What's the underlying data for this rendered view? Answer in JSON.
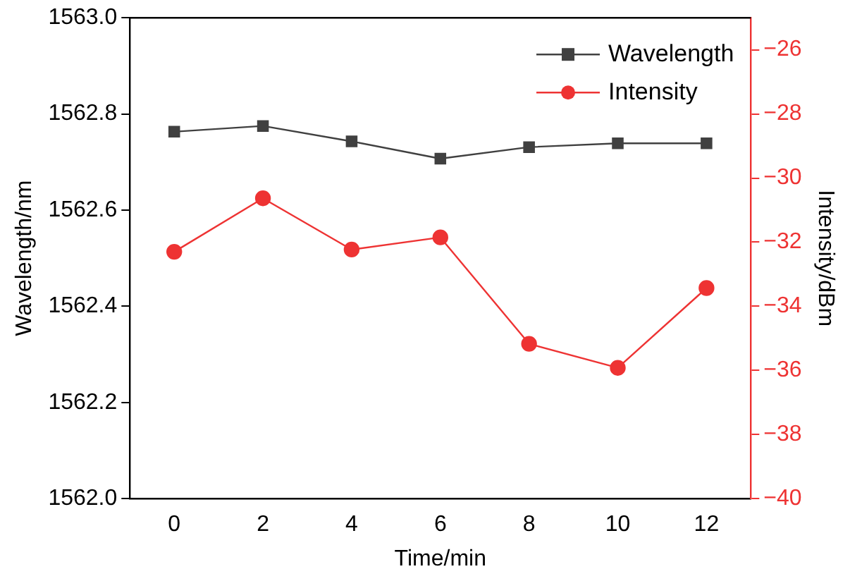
{
  "chart_data": {
    "type": "line",
    "xlabel": "Time/min",
    "ylabel": "Wavelength/nm",
    "y2label": "Intensity/dBm",
    "x": [
      0,
      2,
      4,
      6,
      8,
      10,
      12
    ],
    "series": [
      {
        "name": "Wavelength",
        "color": "#404040",
        "marker": "square",
        "values": [
          1562.763,
          1562.775,
          1562.743,
          1562.707,
          1562.731,
          1562.739,
          1562.739
        ]
      },
      {
        "name": "Intensity",
        "color": "#ee3333",
        "marker": "circle",
        "axis": "y2",
        "values": [
          -32.3,
          -30.63,
          -32.23,
          -31.85,
          -35.17,
          -35.92,
          -33.43
        ]
      }
    ],
    "xlim": [
      -1,
      13
    ],
    "xticks": [
      0,
      2,
      4,
      6,
      8,
      10,
      12
    ],
    "ylim": [
      1562.0,
      1563.0
    ],
    "yticks": [
      {
        "value": 1562.0,
        "label": "1562.0"
      },
      1562.2,
      1562.4,
      1562.6,
      1562.8,
      {
        "value": 1563.0,
        "label": "1563.0"
      }
    ],
    "y2lim": [
      -40,
      -25
    ],
    "y2ticks": [
      {
        "value": -40,
        "label": "−40"
      },
      {
        "value": -38,
        "label": "−38"
      },
      {
        "value": -36,
        "label": "−36"
      },
      {
        "value": -34,
        "label": "−34"
      },
      {
        "value": -32,
        "label": "−32"
      },
      {
        "value": -30,
        "label": "−30"
      },
      {
        "value": -28,
        "label": "−28"
      },
      {
        "value": -26,
        "label": "−26"
      }
    ],
    "grid": false,
    "legend": "top right"
  }
}
